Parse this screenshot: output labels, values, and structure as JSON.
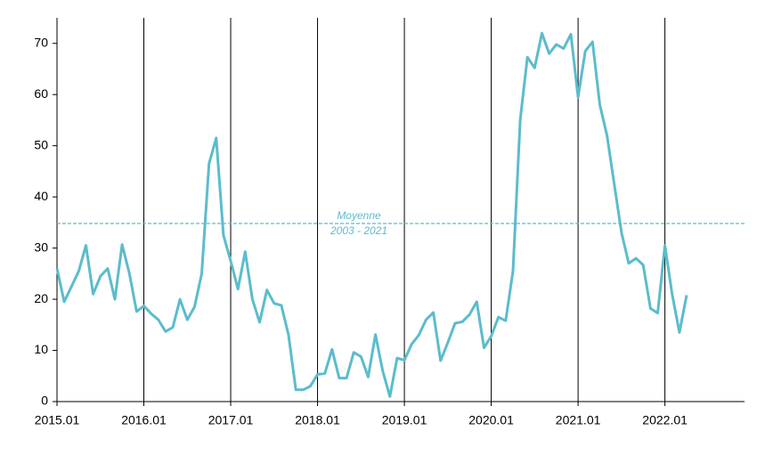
{
  "chart_data": {
    "type": "line",
    "categories": [
      "2015.01",
      "2015.02",
      "2015.03",
      "2015.04",
      "2015.05",
      "2015.06",
      "2015.07",
      "2015.08",
      "2015.09",
      "2015.10",
      "2015.11",
      "2015.12",
      "2016.01",
      "2016.02",
      "2016.03",
      "2016.04",
      "2016.05",
      "2016.06",
      "2016.07",
      "2016.08",
      "2016.09",
      "2016.10",
      "2016.11",
      "2016.12",
      "2017.01",
      "2017.02",
      "2017.03",
      "2017.04",
      "2017.05",
      "2017.06",
      "2017.07",
      "2017.08",
      "2017.09",
      "2017.10",
      "2017.11",
      "2017.12",
      "2018.01",
      "2018.02",
      "2018.03",
      "2018.04",
      "2018.05",
      "2018.06",
      "2018.07",
      "2018.08",
      "2018.09",
      "2018.10",
      "2018.11",
      "2018.12",
      "2019.01",
      "2019.02",
      "2019.03",
      "2019.04",
      "2019.05",
      "2019.06",
      "2019.07",
      "2019.08",
      "2019.09",
      "2019.10",
      "2019.11",
      "2019.12",
      "2020.01",
      "2020.02",
      "2020.03",
      "2020.04",
      "2020.05",
      "2020.06",
      "2020.07",
      "2020.08",
      "2020.09",
      "2020.10",
      "2020.11",
      "2020.12",
      "2021.01",
      "2021.02",
      "2021.03",
      "2021.04",
      "2021.05",
      "2021.06",
      "2021.07",
      "2021.08",
      "2021.09",
      "2021.10",
      "2021.11",
      "2021.12",
      "2022.01",
      "2022.02",
      "2022.03",
      "2022.04",
      "2022.05",
      "2022.06",
      "2022.07",
      "2022.08",
      "2022.09",
      "2022.10",
      "2022.11",
      "2022.12"
    ],
    "series": [
      {
        "color": "#5bbccc",
        "values": [
          26,
          19.5,
          22.5,
          25.5,
          30.5,
          21,
          24.5,
          26,
          20,
          30.7,
          25,
          17.6,
          18.7,
          17.2,
          16,
          13.7,
          14.5,
          20,
          16,
          18.5,
          25,
          46.5,
          51.5,
          32.5,
          27.5,
          22,
          29.3,
          20,
          15.5,
          21.8,
          19.2,
          18.8,
          13,
          2.3,
          2.3,
          3,
          5.3,
          5.5,
          10.2,
          4.6,
          4.6,
          9.6,
          8.8,
          4.8,
          13.1,
          6,
          1,
          8.5,
          8.1,
          11.2,
          13,
          16,
          17.4,
          8,
          11.5,
          15.3,
          15.6,
          17,
          19.5,
          10.5,
          12.8,
          16.5,
          15.8,
          25.5,
          55,
          67.3,
          65.2,
          72,
          68,
          69.8,
          69,
          71.8,
          59.5,
          68.5,
          70.3,
          58,
          52,
          42.5,
          33,
          27,
          28,
          26.7,
          18.2,
          17.3,
          30.5,
          21,
          13.5,
          20.8,
          null,
          null,
          null,
          null,
          null,
          null,
          null,
          null
        ]
      }
    ],
    "reference_line": {
      "value": 34.8,
      "label": [
        "Moyenne",
        "2003 - 2021"
      ],
      "color": "#5bbccc"
    },
    "ylim": [
      0,
      75
    ],
    "yticks": [
      0,
      10,
      20,
      30,
      40,
      50,
      60,
      70
    ]
  }
}
